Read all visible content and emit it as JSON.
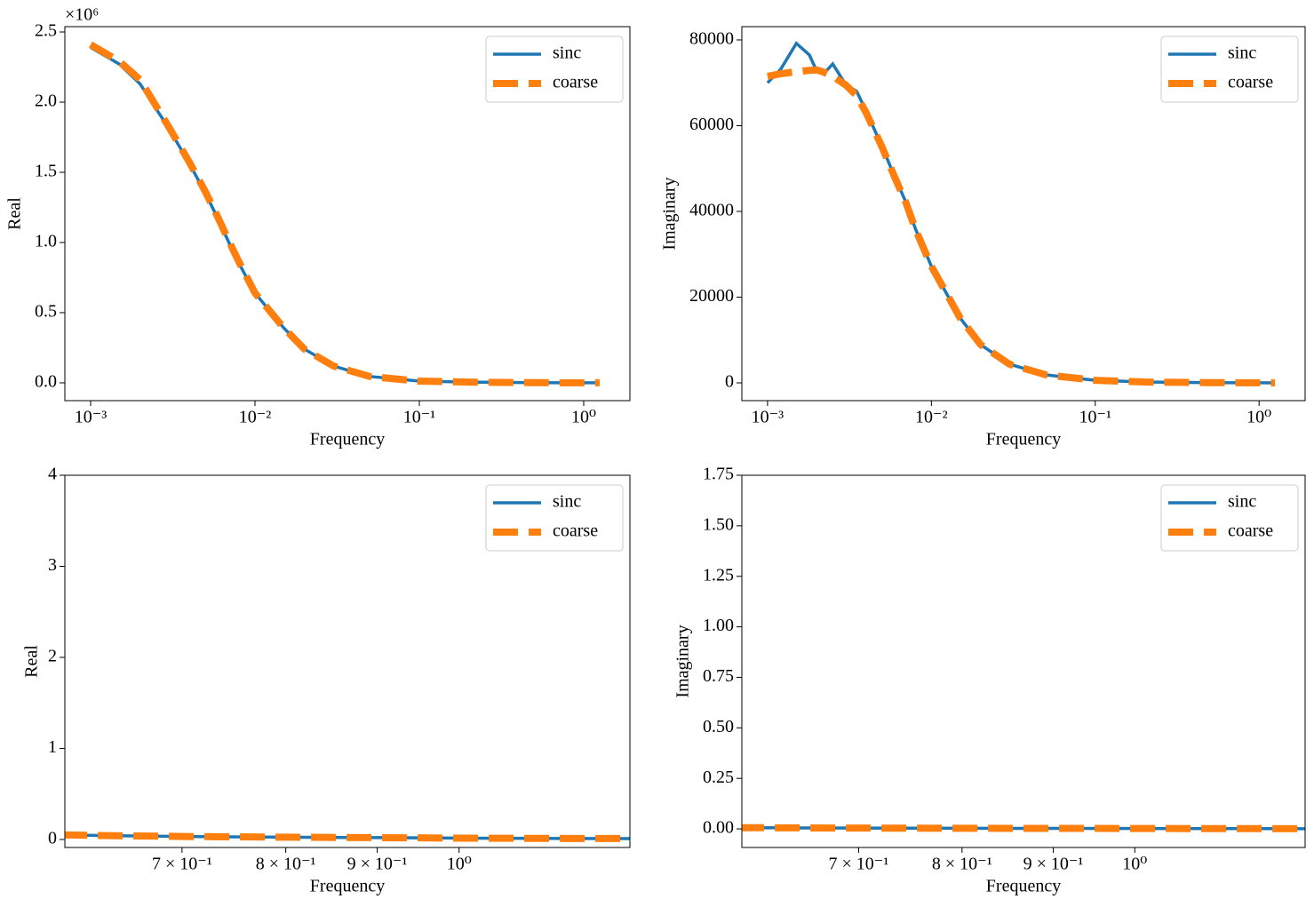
{
  "chart_data": [
    {
      "type": "line",
      "xlabel": "Frequency",
      "ylabel": "Real",
      "y_offset_label": "×10⁶",
      "xscale": "log",
      "legend": "upper right",
      "x": [
        0.001,
        0.0015,
        0.002,
        0.003,
        0.004,
        0.005,
        0.006,
        0.007,
        0.008,
        0.01,
        0.015,
        0.02,
        0.03,
        0.05,
        0.1,
        0.2,
        0.5,
        1.0,
        1.25
      ],
      "series": [
        {
          "name": "sinc",
          "color": "#1f77b4",
          "values": [
            2390000,
            2270000,
            2130000,
            1810000,
            1560000,
            1350000,
            1160000,
            990000,
            850000,
            640000,
            390000,
            240000,
            120000,
            45000,
            12000,
            5000,
            1000,
            500,
            300
          ]
        },
        {
          "name": "coarse",
          "color": "#ff7f0e",
          "values": [
            2410000,
            2290000,
            2160000,
            1820000,
            1570000,
            1360000,
            1170000,
            1000000,
            860000,
            640000,
            390000,
            240000,
            120000,
            45000,
            12000,
            5000,
            1000,
            500,
            300
          ]
        }
      ],
      "xlim": [
        0.000697,
        1.91
      ],
      "ylim": [
        -127000,
        2538000
      ],
      "xticks": [
        {
          "value": 0.001,
          "label": "10⁻³"
        },
        {
          "value": 0.01,
          "label": "10⁻²"
        },
        {
          "value": 0.1,
          "label": "10⁻¹"
        },
        {
          "value": 1,
          "label": "10⁰"
        }
      ],
      "yticks": [
        {
          "value": 0,
          "label": "0.0"
        },
        {
          "value": 500000,
          "label": "0.5"
        },
        {
          "value": 1000000,
          "label": "1.0"
        },
        {
          "value": 1500000,
          "label": "1.5"
        },
        {
          "value": 2000000,
          "label": "2.0"
        },
        {
          "value": 2500000,
          "label": "2.5"
        }
      ]
    },
    {
      "type": "line",
      "xlabel": "Frequency",
      "ylabel": "Imaginary",
      "xscale": "log",
      "legend": "upper right",
      "x": [
        0.001,
        0.0012,
        0.0015,
        0.0018,
        0.002,
        0.0022,
        0.0025,
        0.003,
        0.0035,
        0.004,
        0.005,
        0.006,
        0.007,
        0.008,
        0.01,
        0.015,
        0.02,
        0.03,
        0.05,
        0.1,
        0.2,
        0.5,
        1.0,
        1.25
      ],
      "series": [
        {
          "name": "sinc",
          "color": "#1f77b4",
          "values": [
            70000,
            73100,
            79200,
            76500,
            72700,
            72100,
            74400,
            69600,
            68000,
            63400,
            55100,
            47900,
            42100,
            35900,
            27200,
            15100,
            8900,
            4350,
            1870,
            600,
            200,
            50,
            20,
            10
          ]
        },
        {
          "name": "coarse",
          "color": "#ff7f0e",
          "values": [
            71500,
            72100,
            72600,
            72900,
            73000,
            72500,
            71500,
            69500,
            67000,
            63000,
            55000,
            47800,
            42000,
            35800,
            27200,
            15100,
            8900,
            4350,
            1870,
            600,
            200,
            50,
            20,
            10
          ]
        }
      ],
      "xlim": [
        0.000697,
        1.91
      ],
      "ylim": [
        -4145,
        83100
      ],
      "xticks": [
        {
          "value": 0.001,
          "label": "10⁻³"
        },
        {
          "value": 0.01,
          "label": "10⁻²"
        },
        {
          "value": 0.1,
          "label": "10⁻¹"
        },
        {
          "value": 1,
          "label": "10⁰"
        }
      ],
      "yticks": [
        0,
        20000,
        40000,
        60000,
        80000
      ]
    },
    {
      "type": "line",
      "xlabel": "Frequency",
      "ylabel": "Real",
      "xscale": "log",
      "legend": "upper right",
      "x": [
        0.6,
        0.65,
        0.7,
        0.8,
        0.9,
        1.0,
        1.1,
        1.25
      ],
      "series": [
        {
          "name": "sinc",
          "color": "#1f77b4",
          "values": [
            0.05,
            0.04,
            0.033,
            0.025,
            0.02,
            0.015,
            0.012,
            0.01
          ]
        },
        {
          "name": "coarse",
          "color": "#ff7f0e",
          "values": [
            0.05,
            0.04,
            0.033,
            0.025,
            0.02,
            0.015,
            0.012,
            0.01
          ]
        }
      ],
      "xlim": [
        0.602,
        1.246
      ],
      "ylim": [
        -0.088,
        4
      ],
      "xticks": [
        {
          "value": 0.7,
          "label": "7 × 10⁻¹"
        },
        {
          "value": 0.8,
          "label": "8 × 10⁻¹"
        },
        {
          "value": 0.9,
          "label": "9 × 10⁻¹"
        },
        {
          "value": 1,
          "label": "10⁰"
        }
      ],
      "yticks": [
        0,
        1,
        2,
        3,
        4
      ]
    },
    {
      "type": "line",
      "xlabel": "Frequency",
      "ylabel": "Imaginary",
      "xscale": "log",
      "legend": "upper right",
      "x": [
        0.6,
        0.65,
        0.7,
        0.8,
        0.9,
        1.0,
        1.1,
        1.25
      ],
      "series": [
        {
          "name": "sinc",
          "color": "#1f77b4",
          "values": [
            0.006,
            0.005,
            0.004,
            0.003,
            0.0025,
            0.002,
            0.0015,
            0.001
          ]
        },
        {
          "name": "coarse",
          "color": "#ff7f0e",
          "values": [
            0.006,
            0.005,
            0.004,
            0.003,
            0.0025,
            0.002,
            0.0015,
            0.001
          ]
        }
      ],
      "xlim": [
        0.602,
        1.246
      ],
      "ylim": [
        -0.092,
        1.75
      ],
      "xticks": [
        {
          "value": 0.7,
          "label": "7 × 10⁻¹"
        },
        {
          "value": 0.8,
          "label": "8 × 10⁻¹"
        },
        {
          "value": 0.9,
          "label": "9 × 10⁻¹"
        },
        {
          "value": 1,
          "label": "10⁰"
        }
      ],
      "yticks": [
        {
          "value": 0,
          "label": "0.00"
        },
        {
          "value": 0.25,
          "label": "0.25"
        },
        {
          "value": 0.5,
          "label": "0.50"
        },
        {
          "value": 0.75,
          "label": "0.75"
        },
        {
          "value": 1,
          "label": "1.00"
        },
        {
          "value": 1.25,
          "label": "1.25"
        },
        {
          "value": 1.5,
          "label": "1.50"
        },
        {
          "value": 1.75,
          "label": "1.75"
        }
      ]
    }
  ]
}
